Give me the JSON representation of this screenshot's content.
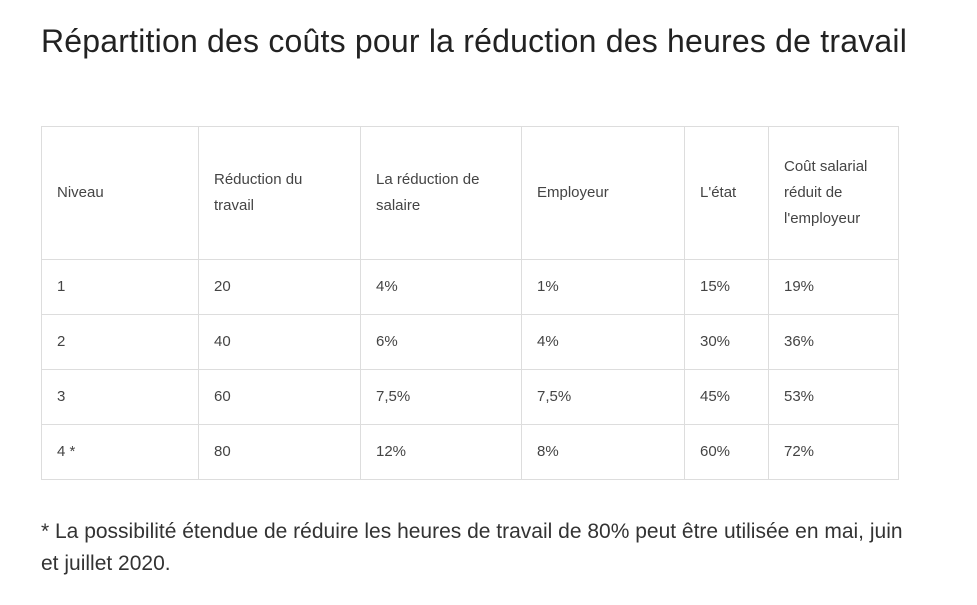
{
  "title": "Répartition des coûts pour la réduction des heures de travail",
  "table": {
    "headers": [
      "Niveau",
      "Réduction du travail",
      "La réduction de salaire",
      "Employeur",
      "L'état",
      "Coût salarial réduit de l'employeur"
    ],
    "rows": [
      [
        "1",
        "20",
        "4%",
        "1%",
        "15%",
        "19%"
      ],
      [
        "2",
        "40",
        "6%",
        "4%",
        "30%",
        "36%"
      ],
      [
        "3",
        "60",
        "7,5%",
        "7,5%",
        "45%",
        "53%"
      ],
      [
        "4 *",
        "80",
        "12%",
        "8%",
        "60%",
        "72%"
      ]
    ]
  },
  "footnote": "* La possibilité étendue de réduire les heures de travail de 80% peut être utilisée en mai, juin et juillet 2020."
}
